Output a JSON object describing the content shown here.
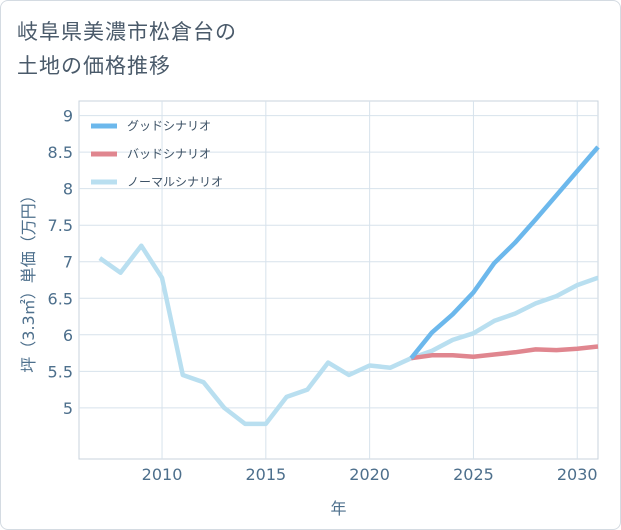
{
  "title": {
    "line1": "岐阜県美濃市松倉台の",
    "line2": "土地の価格推移"
  },
  "chart_data": {
    "type": "line",
    "xlabel": "年",
    "ylabel": "坪（3.3㎡）単価（万円）",
    "xlim": [
      2006,
      2031
    ],
    "ylim": [
      4.3,
      9.2
    ],
    "xticks": [
      2010,
      2015,
      2020,
      2025,
      2030
    ],
    "yticks": [
      5,
      5.5,
      6,
      6.5,
      7,
      7.5,
      8,
      8.5,
      9
    ],
    "ytick_labels": [
      "5",
      "5.5",
      "6",
      "6.5",
      "7",
      "7.5",
      "8",
      "8.5",
      "9"
    ],
    "legend_position": "top-left",
    "series": [
      {
        "name": "グッドシナリオ",
        "color": "#6cb8ec",
        "x": [
          2022,
          2023,
          2024,
          2025,
          2026,
          2027,
          2028,
          2029,
          2030,
          2031
        ],
        "values": [
          5.68,
          6.03,
          6.28,
          6.58,
          6.98,
          7.26,
          7.58,
          7.91,
          8.24,
          8.57
        ]
      },
      {
        "name": "バッドシナリオ",
        "color": "#e0868f",
        "x": [
          2022,
          2023,
          2024,
          2025,
          2026,
          2027,
          2028,
          2029,
          2030,
          2031
        ],
        "values": [
          5.68,
          5.72,
          5.72,
          5.7,
          5.73,
          5.76,
          5.8,
          5.79,
          5.81,
          5.84
        ]
      },
      {
        "name": "ノーマルシナリオ",
        "color": "#b9dff0",
        "x": [
          2007,
          2008,
          2009,
          2010,
          2011,
          2012,
          2013,
          2014,
          2015,
          2016,
          2017,
          2018,
          2019,
          2020,
          2021,
          2022,
          2023,
          2024,
          2025,
          2026,
          2027,
          2028,
          2029,
          2030,
          2031
        ],
        "values": [
          7.05,
          6.85,
          7.22,
          6.78,
          5.45,
          5.35,
          5.0,
          4.78,
          4.78,
          5.15,
          5.25,
          5.62,
          5.45,
          5.58,
          5.55,
          5.68,
          5.78,
          5.93,
          6.02,
          6.19,
          6.29,
          6.43,
          6.53,
          6.68,
          6.78
        ]
      }
    ]
  }
}
